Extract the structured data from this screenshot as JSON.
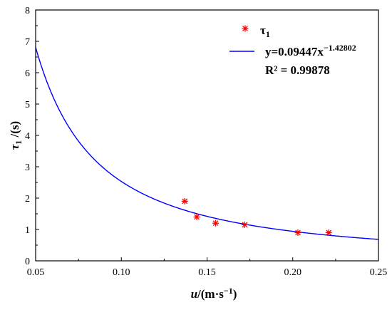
{
  "chart_data": {
    "type": "scatter",
    "xlim": [
      0.05,
      0.25
    ],
    "ylim": [
      0,
      8
    ],
    "x_ticks": [
      0.05,
      0.1,
      0.15,
      0.2,
      0.25
    ],
    "x_tick_labels": [
      "0.05",
      "0.10",
      "0.15",
      "0.20",
      "0.25"
    ],
    "y_ticks": [
      0,
      1,
      2,
      3,
      4,
      5,
      6,
      7,
      8
    ],
    "y_tick_labels": [
      "0",
      "1",
      "2",
      "3",
      "4",
      "5",
      "6",
      "7",
      "8"
    ],
    "xlabel": {
      "italic": "u",
      "rest": "/(m·s",
      "sup": "−1",
      "close": ")"
    },
    "ylabel": {
      "main": "τ",
      "sub": "1",
      "rest": " /(s)"
    },
    "grid": false,
    "legend_position": "top-right",
    "series": [
      {
        "name": "τ",
        "name_sub": "1",
        "kind": "scatter",
        "marker": "asterisk",
        "color": "#ff0000",
        "x": [
          0.137,
          0.144,
          0.155,
          0.172,
          0.203,
          0.221
        ],
        "y": [
          1.9,
          1.4,
          1.2,
          1.15,
          0.9,
          0.9
        ]
      },
      {
        "kind": "fit",
        "color": "#0000ff",
        "formula": "y=0.09447x",
        "exponent": "−1.42802",
        "coefficient": 0.09447,
        "power": -1.42802
      }
    ],
    "r_squared_label": "R² = 0.99878"
  }
}
